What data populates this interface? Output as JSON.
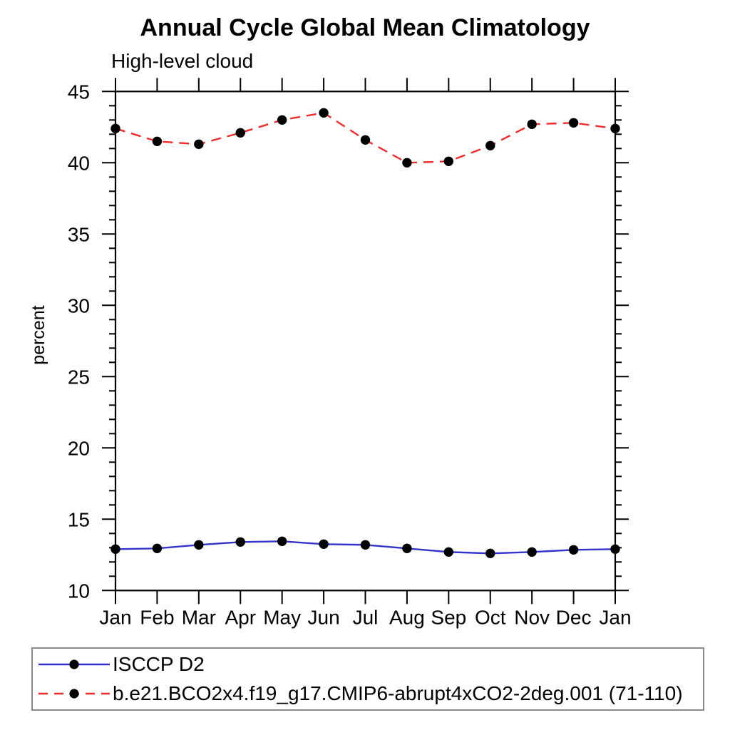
{
  "chart_data": {
    "type": "line",
    "title": "Annual Cycle Global Mean Climatology",
    "subtitle": "High-level cloud",
    "ylabel": "percent",
    "categories": [
      "Jan",
      "Feb",
      "Mar",
      "Apr",
      "May",
      "Jun",
      "Jul",
      "Aug",
      "Sep",
      "Oct",
      "Nov",
      "Dec",
      "Jan"
    ],
    "ylim": [
      10,
      45
    ],
    "ytick_major": [
      10,
      15,
      20,
      25,
      30,
      35,
      40,
      45
    ],
    "ytick_minor_step": 1,
    "grid": false,
    "legend_position": "bottom",
    "marker": {
      "shape": "circle",
      "color": "#000000"
    },
    "series": [
      {
        "name": "ISCCP D2",
        "color": "#3333cc",
        "line_style": "solid",
        "values": [
          12.9,
          12.95,
          13.2,
          13.4,
          13.45,
          13.25,
          13.2,
          12.95,
          12.7,
          12.6,
          12.7,
          12.85,
          12.9
        ]
      },
      {
        "name": "b.e21.BCO2x4.f19_g17.CMIP6-abrupt4xCO2-2deg.001 (71-110)",
        "color": "#ee2c2c",
        "line_style": "dashed",
        "values": [
          42.4,
          41.5,
          41.3,
          42.1,
          43.0,
          43.5,
          41.6,
          40.0,
          40.1,
          41.2,
          42.7,
          42.8,
          42.4
        ]
      }
    ]
  }
}
